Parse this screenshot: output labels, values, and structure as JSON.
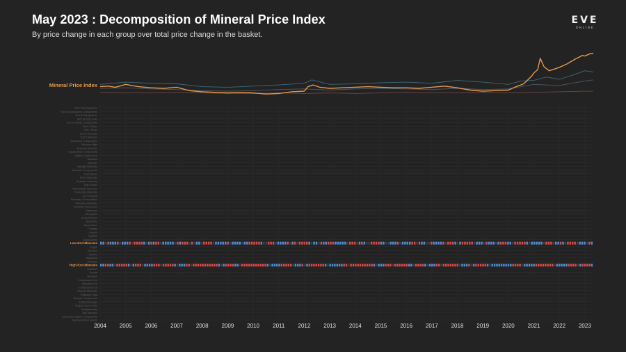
{
  "header": {
    "title": "May 2023 : Decomposition of Mineral Price Index",
    "subtitle": "By price change in each group over total price change in the basket."
  },
  "logo": {
    "main": "EVE",
    "sub": "ONLINE"
  },
  "colors": {
    "background": "#232323",
    "index_line": "#e8994a",
    "increase": "#d94a45",
    "decrease": "#4d8fd6",
    "neutral": "#3a3f47",
    "context_lines": [
      "#3f6a78",
      "#4f5a63",
      "#6a4a46"
    ]
  },
  "chart_data": {
    "type": "line",
    "index_label": "Mineral Price Index",
    "x_ticks": [
      "2004",
      "2005",
      "2006",
      "2007",
      "2008",
      "2009",
      "2010",
      "2011",
      "2012",
      "2013",
      "2014",
      "2015",
      "2016",
      "2017",
      "2018",
      "2019",
      "2020",
      "2021",
      "2022",
      "2023"
    ],
    "series": [
      {
        "name": "Mineral Price Index",
        "x": [
          2004.0,
          2004.3,
          2004.6,
          2005.0,
          2005.5,
          2006.0,
          2006.5,
          2007.0,
          2007.5,
          2008.0,
          2008.5,
          2009.0,
          2009.5,
          2010.0,
          2010.5,
          2011.0,
          2011.5,
          2012.0,
          2012.15,
          2012.35,
          2012.6,
          2013.0,
          2013.5,
          2014.0,
          2014.5,
          2015.0,
          2015.5,
          2016.0,
          2016.5,
          2017.0,
          2017.5,
          2018.0,
          2018.5,
          2019.0,
          2019.5,
          2020.0,
          2020.3,
          2020.6,
          2020.9,
          2021.0,
          2021.15,
          2021.25,
          2021.4,
          2021.6,
          2021.8,
          2022.0,
          2022.3,
          2022.6,
          2022.9,
          2023.0,
          2023.2,
          2023.33
        ],
        "y": [
          100,
          101,
          99,
          104,
          100,
          98,
          97,
          99,
          93,
          91,
          90,
          89,
          90,
          89,
          87,
          88,
          91,
          92,
          100,
          103,
          99,
          97,
          98,
          99,
          100,
          99,
          98,
          98,
          97,
          99,
          101,
          98,
          94,
          92,
          93,
          94,
          100,
          105,
          118,
          124,
          130,
          150,
          135,
          128,
          131,
          134,
          140,
          148,
          155,
          154,
          158,
          159
        ]
      },
      {
        "name": "",
        "x": [
          2004.0,
          2005.0,
          2006.0,
          2007.0,
          2008.0,
          2009.0,
          2010.0,
          2011.0,
          2012.0,
          2012.3,
          2013.0,
          2014.0,
          2015.0,
          2016.0,
          2017.0,
          2018.0,
          2019.0,
          2020.0,
          2020.5,
          2021.0,
          2021.5,
          2022.0,
          2022.5,
          2023.0,
          2023.33
        ],
        "y": [
          104,
          108,
          106,
          105,
          100,
          99,
          101,
          103,
          106,
          112,
          104,
          105,
          107,
          108,
          106,
          111,
          108,
          104,
          110,
          111,
          117,
          113,
          120,
          128,
          126
        ]
      },
      {
        "name": "",
        "x": [
          2004.0,
          2005.0,
          2006.0,
          2007.0,
          2008.0,
          2009.0,
          2010.0,
          2011.0,
          2012.0,
          2013.0,
          2014.0,
          2015.0,
          2016.0,
          2017.0,
          2018.0,
          2019.0,
          2020.0,
          2021.0,
          2022.0,
          2023.0,
          2023.33
        ],
        "y": [
          97,
          98,
          96,
          95,
          93,
          92,
          93,
          95,
          96,
          94,
          96,
          97,
          96,
          95,
          97,
          95,
          96,
          104,
          102,
          110,
          112
        ]
      },
      {
        "name": "",
        "x": [
          2004.0,
          2005.0,
          2006.0,
          2007.0,
          2008.0,
          2009.0,
          2010.0,
          2011.0,
          2012.0,
          2013.0,
          2014.0,
          2015.0,
          2016.0,
          2017.0,
          2018.0,
          2019.0,
          2020.0,
          2021.0,
          2022.0,
          2023.0,
          2023.33
        ],
        "y": [
          90,
          89,
          89,
          90,
          89,
          88,
          88,
          89,
          88,
          89,
          88,
          89,
          90,
          89,
          89,
          90,
          89,
          90,
          91,
          92,
          92
        ]
      }
    ],
    "heatmap": {
      "x_start": 2004.0,
      "x_end": 2023.33,
      "highlighted_rows": [
        "Low-End Minerals",
        "High-End Minerals"
      ],
      "low_end_pattern": "BBNRBBBRNBBBRNRRRRBNBRBRRNBBBBBNRBRRRNRNBBNRRRRNBBBBBRNBBBBNBBRRRRRBNNRRRNBBBBRNBRNRRRRBNBBNRBBRRRBBBBBNRRRNBRBNNRRRRBBNNBBBRNBBBBRRNRBBNNRBBBBRNRRRBNBRRRRRNBBBNRBBBNBRRRBBNRRRRRBNBBBBBNRRRNBBRBNRRRRNBBBNRB",
      "high_end_pattern": "BBRRBBNRRRRRBNBRRRNBBBBRRRNRRRRRBNBBBRRNRRRRRRRRRRRBNBRRRRBBNRRRRRRRRRRRBNBBBBRRRRRNBBBRNBRRRRRRRBNBBBBBBRRNRRRRRRRRRRBNBBBRRRNRRRRRRBBNRRRRBNBBBRRNRRRRRRRNBBBRNBRRRRRBNBBBBBBBBBRRRRNBBBBBRRRRRRRRNBBBBBRRRRNBRRRRB"
    }
  },
  "row_labels": [
    "Tech III Subsystems",
    "Tech III Subsystem Components",
    "Tech II Subsystems",
    "Tech III Ship Hulls",
    "Tech II Hybrid Components",
    "Tech II Ships",
    "Tech I Ships",
    "Tech II Modules",
    "Tech I Modules",
    "Advanced Components",
    "Structure Rigs",
    "Structure Modules",
    "Capital Ship Components",
    "Capital Construction",
    "Boosters",
    "Implants",
    "Salvage Materials",
    "Structure Components",
    "Fuel Blocks",
    "Moon Materials",
    "Reaction Products",
    "Gas Clouds",
    "Intermediate Materials",
    "Composite Materials",
    "Ice Products",
    "Planetary Commodities",
    "Planetary Materials",
    "Planetary Resources",
    "Datacores",
    "Decryptors",
    "Ancient Relics",
    "Blueprints",
    "Ammunition",
    "Charges",
    "Drones",
    "Fighters",
    "Deployables",
    "Low-End Minerals",
    "Isogen",
    "Nocxium",
    "Zydrine",
    "Megacyte",
    "Morphite",
    "High-End Minerals",
    "Tritanium",
    "Pyerite",
    "Mexallon",
    "Compressed Ore",
    "Standard Ore",
    "Compressed Ice",
    "Abyssal Materials",
    "Triglavian Data",
    "Sleeper Components",
    "Ancient Salvage",
    "Rogue Drone Parts",
    "Mutaplasmids",
    "Skill Injectors",
    "Advanced Capital Components",
    "Special Edition Assets"
  ]
}
